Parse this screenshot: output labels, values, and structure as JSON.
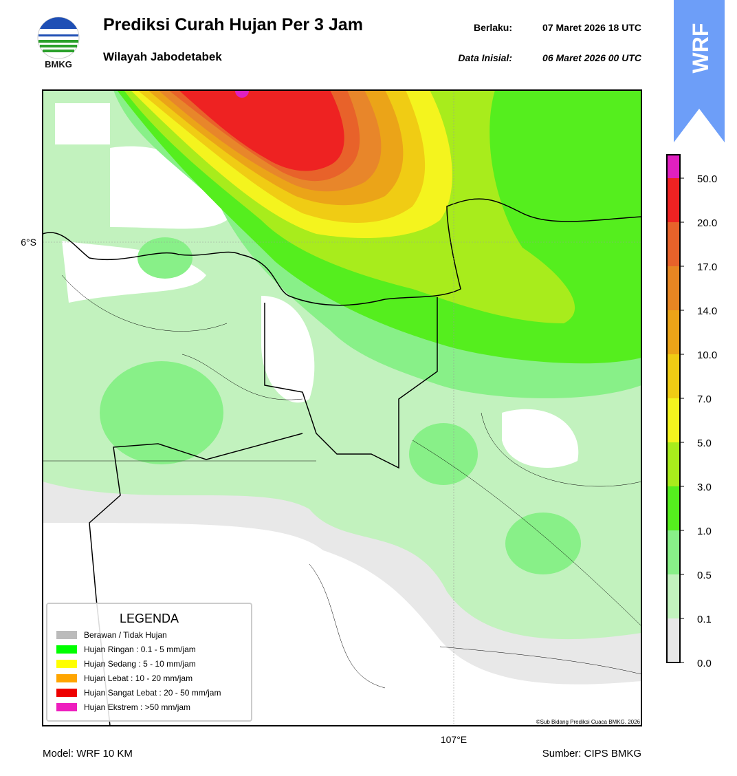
{
  "header": {
    "logo_text": "BMKG",
    "title": "Prediksi Curah Hujan Per 3 Jam",
    "subtitle": "Wilayah Jabodetabek",
    "valid_label": "Berlaku:",
    "valid_value": "07 Maret 2026 18 UTC",
    "init_label": "Data Inisial:",
    "init_value": "06 Maret 2026 00 UTC",
    "badge": "WRF"
  },
  "map": {
    "lat_label": "6°S",
    "lon_label": "107°E",
    "credit": "©Sub Bidang Prediksi Cuaca BMKG, 2026"
  },
  "legend": {
    "title": "LEGENDA",
    "items": [
      {
        "label": "Berawan / Tidak Hujan",
        "color": "#bbbbbb"
      },
      {
        "label": "Hujan Ringan : 0.1 - 5 mm/jam",
        "color": "#00ff00"
      },
      {
        "label": "Hujan Sedang : 5 - 10 mm/jam",
        "color": "#ffff00"
      },
      {
        "label": "Hujan Lebat : 10 - 20 mm/jam",
        "color": "#ffa500"
      },
      {
        "label": "Hujan Sangat Lebat : 20 - 50 mm/jam",
        "color": "#ee0000"
      },
      {
        "label": "Hujan Ekstrem : >50 mm/jam",
        "color": "#ee1ebe"
      }
    ]
  },
  "colorbar": {
    "labels": [
      "0.0",
      "0.1",
      "0.5",
      "1.0",
      "3.0",
      "5.0",
      "7.0",
      "10.0",
      "14.0",
      "17.0",
      "20.0",
      "50.0"
    ],
    "colors": [
      "#e8e8e8",
      "#c2f2be",
      "#88f088",
      "#55ee1e",
      "#a8ec1c",
      "#f4f41e",
      "#f0cc14",
      "#eba418",
      "#e88622",
      "#e8622a",
      "#ee2222",
      "#e020c0"
    ]
  },
  "footer": {
    "model": "Model: WRF 10 KM",
    "source": "Sumber: CIPS BMKG"
  }
}
